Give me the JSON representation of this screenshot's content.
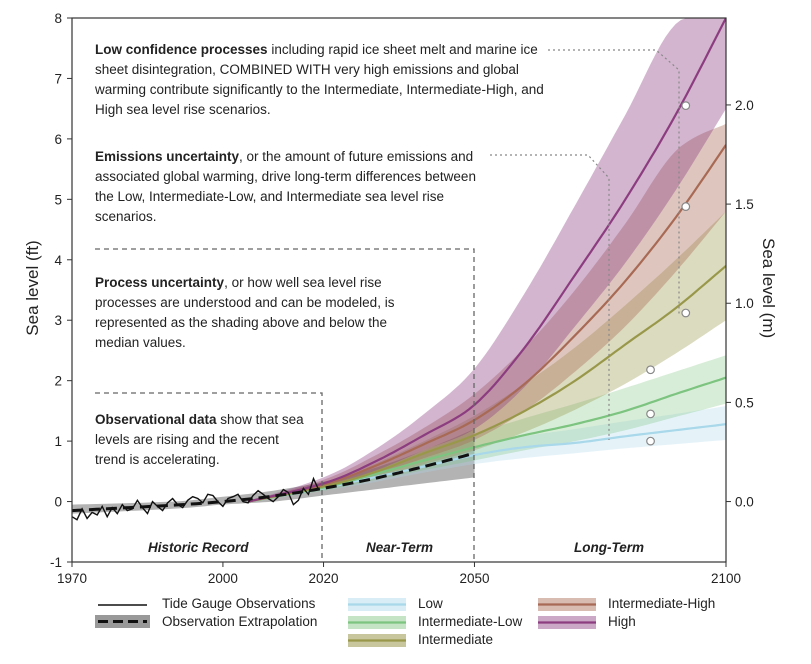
{
  "chart_data": {
    "type": "area",
    "x_range": [
      1970,
      2100
    ],
    "y_left": {
      "label": "Sea level (ft)",
      "range": [
        -1,
        8
      ],
      "ticks": [
        -1,
        0,
        1,
        2,
        3,
        4,
        5,
        6,
        7,
        8
      ]
    },
    "y_right": {
      "label": "Sea level (m)",
      "ticks": [
        0.0,
        0.5,
        1.0,
        1.5,
        2.0
      ],
      "tick_labels": [
        "0.0",
        "0.5",
        "1.0",
        "1.5",
        "2.0"
      ]
    },
    "x_ticks": [
      1970,
      2000,
      2020,
      2050,
      2100
    ],
    "periods": [
      {
        "label": "Historic Record",
        "x_center": 1995
      },
      {
        "label": "Near-Term",
        "x_center": 2035
      },
      {
        "label": "Long-Term",
        "x_center": 2077
      }
    ],
    "observations": {
      "name": "Tide Gauge Observations",
      "x": [
        1970,
        1971,
        1972,
        1973,
        1974,
        1975,
        1976,
        1977,
        1978,
        1979,
        1980,
        1981,
        1982,
        1983,
        1984,
        1985,
        1986,
        1987,
        1988,
        1989,
        1990,
        1991,
        1992,
        1993,
        1994,
        1995,
        1996,
        1997,
        1998,
        1999,
        2000,
        2001,
        2002,
        2003,
        2004,
        2005,
        2006,
        2007,
        2008,
        2009,
        2010,
        2011,
        2012,
        2013,
        2014,
        2015,
        2016,
        2017,
        2018,
        2019
      ],
      "y": [
        -0.25,
        -0.3,
        -0.12,
        -0.28,
        -0.18,
        -0.22,
        -0.08,
        -0.25,
        -0.1,
        -0.2,
        -0.05,
        -0.15,
        -0.12,
        0.02,
        -0.1,
        -0.2,
        0.0,
        -0.08,
        -0.15,
        -0.02,
        0.05,
        -0.05,
        -0.1,
        0.02,
        0.08,
        0.05,
        -0.02,
        0.12,
        0.1,
        0.0,
        -0.08,
        0.05,
        0.08,
        0.12,
        0.0,
        -0.02,
        0.1,
        0.18,
        0.12,
        0.05,
        0.0,
        0.08,
        0.2,
        0.15,
        -0.05,
        0.02,
        0.22,
        0.12,
        0.38,
        0.2
      ]
    },
    "extrapolation": {
      "name": "Observation Extrapolation",
      "x": [
        1970,
        1990,
        2000,
        2010,
        2020,
        2030,
        2040,
        2050
      ],
      "y": [
        -0.15,
        -0.06,
        0.0,
        0.09,
        0.22,
        0.38,
        0.58,
        0.8
      ],
      "lower": [
        -0.2,
        -0.12,
        -0.05,
        0.0,
        0.1,
        0.2,
        0.3,
        0.4
      ],
      "upper": [
        -0.05,
        0.0,
        0.08,
        0.18,
        0.33,
        0.55,
        0.85,
        1.2
      ]
    },
    "series": [
      {
        "name": "Low",
        "color": "#a8d8ea",
        "x": [
          2005,
          2020,
          2030,
          2040,
          2050,
          2060,
          2070,
          2080,
          2090,
          2100
        ],
        "y": [
          0.0,
          0.22,
          0.4,
          0.58,
          0.77,
          0.9,
          0.97,
          1.08,
          1.18,
          1.28
        ],
        "lower": [
          0.0,
          0.18,
          0.32,
          0.48,
          0.62,
          0.72,
          0.8,
          0.88,
          0.95,
          1.02
        ],
        "upper": [
          0.0,
          0.27,
          0.48,
          0.7,
          0.9,
          1.08,
          1.2,
          1.33,
          1.45,
          1.58
        ]
      },
      {
        "name": "Intermediate-Low",
        "color": "#7cc47f",
        "x": [
          2005,
          2020,
          2030,
          2040,
          2050,
          2060,
          2070,
          2080,
          2090,
          2100
        ],
        "y": [
          0.0,
          0.23,
          0.45,
          0.68,
          0.9,
          1.1,
          1.28,
          1.5,
          1.78,
          2.05
        ],
        "lower": [
          0.0,
          0.18,
          0.35,
          0.52,
          0.68,
          0.85,
          1.0,
          1.18,
          1.4,
          1.62
        ],
        "upper": [
          0.0,
          0.29,
          0.55,
          0.82,
          1.12,
          1.38,
          1.62,
          1.88,
          2.15,
          2.42
        ]
      },
      {
        "name": "Intermediate",
        "color": "#99984a",
        "x": [
          2005,
          2020,
          2030,
          2040,
          2050,
          2060,
          2070,
          2080,
          2090,
          2100
        ],
        "y": [
          0.0,
          0.25,
          0.48,
          0.8,
          1.1,
          1.5,
          2.0,
          2.6,
          3.2,
          3.9
        ],
        "lower": [
          0.0,
          0.2,
          0.38,
          0.62,
          0.85,
          1.15,
          1.52,
          1.95,
          2.45,
          3.0
        ],
        "upper": [
          0.0,
          0.32,
          0.62,
          1.0,
          1.42,
          1.95,
          2.55,
          3.25,
          4.0,
          4.8
        ]
      },
      {
        "name": "Intermediate-High",
        "color": "#a86a55",
        "x": [
          2005,
          2020,
          2030,
          2040,
          2050,
          2060,
          2070,
          2080,
          2090,
          2100
        ],
        "y": [
          0.0,
          0.28,
          0.58,
          0.95,
          1.35,
          1.95,
          2.75,
          3.65,
          4.7,
          5.9
        ],
        "lower": [
          0.0,
          0.22,
          0.45,
          0.72,
          1.02,
          1.5,
          2.15,
          2.9,
          3.8,
          4.8
        ],
        "upper": [
          0.0,
          0.36,
          0.75,
          1.22,
          1.78,
          2.55,
          3.5,
          4.6,
          5.8,
          6.25
        ]
      },
      {
        "name": "High",
        "color": "#8c3d80",
        "x": [
          2005,
          2020,
          2030,
          2040,
          2050,
          2060,
          2070,
          2080,
          2090,
          2100
        ],
        "y": [
          0.0,
          0.3,
          0.65,
          1.1,
          1.6,
          2.55,
          3.75,
          5.0,
          6.4,
          8.0
        ],
        "lower": [
          0.0,
          0.24,
          0.5,
          0.85,
          1.2,
          1.9,
          2.9,
          3.95,
          5.15,
          6.5
        ],
        "upper": [
          0.0,
          0.4,
          0.85,
          1.45,
          2.2,
          3.45,
          4.9,
          6.4,
          7.9,
          8.0
        ]
      }
    ],
    "markers": [
      {
        "x": 2085,
        "series": "Low",
        "y": 1.0
      },
      {
        "x": 2085,
        "series": "Intermediate-Low",
        "y": 1.45
      },
      {
        "x": 2085,
        "series": "Intermediate",
        "y": 2.18
      },
      {
        "x": 2092,
        "series": "Intermediate-High",
        "y": 3.12
      },
      {
        "x": 2092,
        "series": "High",
        "y": 4.88
      },
      {
        "x": 2092,
        "series": "High",
        "y": 6.55
      }
    ]
  },
  "annotations": {
    "low_confidence": {
      "bold": "Low confidence processes",
      "rest": " including rapid ice sheet melt and marine ice sheet disintegration, COMBINED WITH very high emissions and global warming contribute significantly to the Intermediate, Intermediate-High, and High sea level rise scenarios."
    },
    "emissions": {
      "bold": "Emissions uncertainty",
      "rest": ", or the amount of future emissions and associated global warming, drive long-term differences between the Low, Intermediate-Low, and Intermediate sea level rise scenarios."
    },
    "process": {
      "bold": "Process uncertainty",
      "rest": ", or how well sea level rise processes are understood and can be modeled, is represented as the shading above and below the median values."
    },
    "observational": {
      "bold": "Observational data",
      "rest": " show that sea levels are rising and the recent trend is accelerating."
    }
  },
  "legend": {
    "tide_gauge": "Tide Gauge Observations",
    "extrapolation": "Observation Extrapolation",
    "low": "Low",
    "intermediate_low": "Intermediate-Low",
    "intermediate": "Intermediate",
    "intermediate_high": "Intermediate-High",
    "high": "High"
  }
}
